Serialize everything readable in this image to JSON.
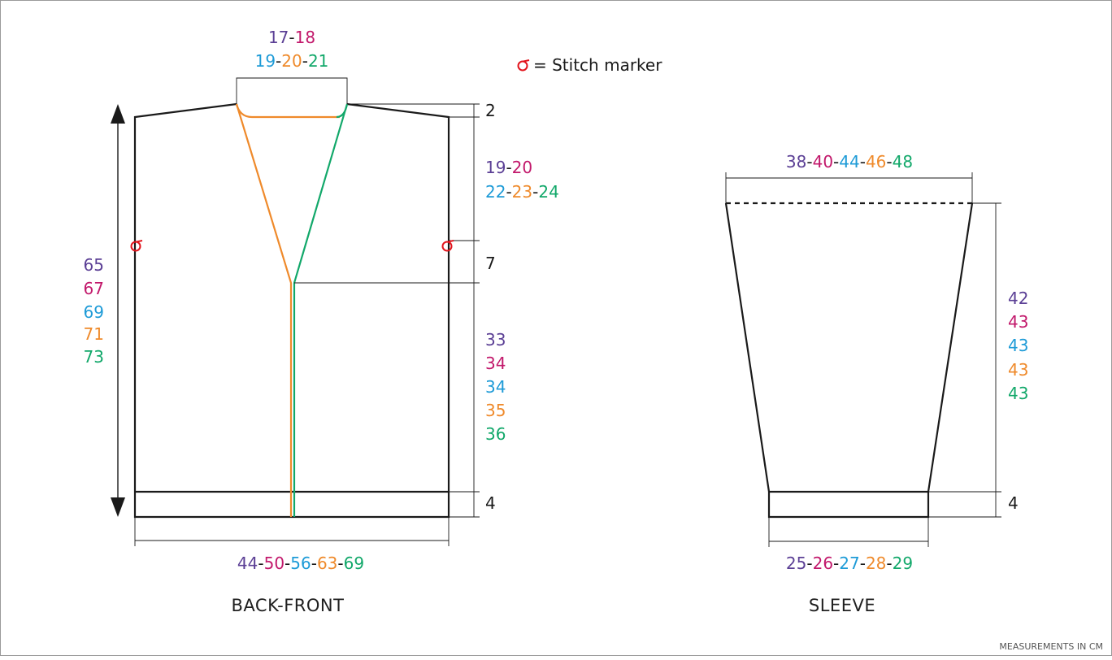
{
  "colors": {
    "size1": "#5b3f95",
    "size2": "#c2186b",
    "size3": "#1e9bd7",
    "size4": "#ef8a2b",
    "size5": "#12a86a",
    "marker": "#e2141c",
    "ink": "#1a1a1a"
  },
  "legend": {
    "marker_icon": "stitch-marker-icon",
    "text": "= Stitch marker"
  },
  "back_front": {
    "title": "BACK-FRONT",
    "neck_width": {
      "row1": [
        "17",
        "18"
      ],
      "row2": [
        "19",
        "20",
        "21"
      ]
    },
    "shoulder_drop": "2",
    "armhole_depth": {
      "row1": [
        "19",
        "20"
      ],
      "row2": [
        "22",
        "23",
        "24"
      ]
    },
    "neck_lower": "7",
    "body_length": [
      "33",
      "34",
      "34",
      "35",
      "36"
    ],
    "rib_height": "4",
    "total_length": [
      "65",
      "67",
      "69",
      "71",
      "73"
    ],
    "width": [
      "44",
      "50",
      "56",
      "63",
      "69"
    ]
  },
  "sleeve": {
    "title": "SLEEVE",
    "top_width": [
      "38",
      "40",
      "44",
      "46",
      "48"
    ],
    "length": [
      "42",
      "43",
      "43",
      "43",
      "43"
    ],
    "rib_height": "4",
    "cuff_width": [
      "25",
      "26",
      "27",
      "28",
      "29"
    ]
  },
  "footer": {
    "note": "MEASUREMENTS IN CM"
  }
}
